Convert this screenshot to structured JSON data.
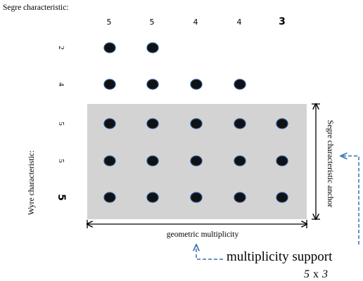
{
  "labels": {
    "segre_title": "Segre characteristic:",
    "wyre_title": "Wyre characteristic:",
    "anchor": "Segre characteristic anchor",
    "geometric": "geometric multiplicity",
    "support": "multiplicity support",
    "dims": {
      "a": "5",
      "x": "x",
      "b": "3"
    }
  },
  "segre_values": [
    "5",
    "5",
    "4",
    "4",
    "3"
  ],
  "segre_bold_index": 4,
  "wyre_values": [
    "2",
    "4",
    "5",
    "5",
    "5"
  ],
  "wyre_bold_index": 4,
  "grid": {
    "row_dots": [
      2,
      4,
      5,
      5,
      5
    ],
    "highlight_rows": 3,
    "highlight_cols": 5
  },
  "colors": {
    "box": "#d3d3d3",
    "dot": "#111111",
    "dot_edge": "#1f4e8c",
    "arrow": "#000000",
    "dashed": "#3a6fb0"
  }
}
